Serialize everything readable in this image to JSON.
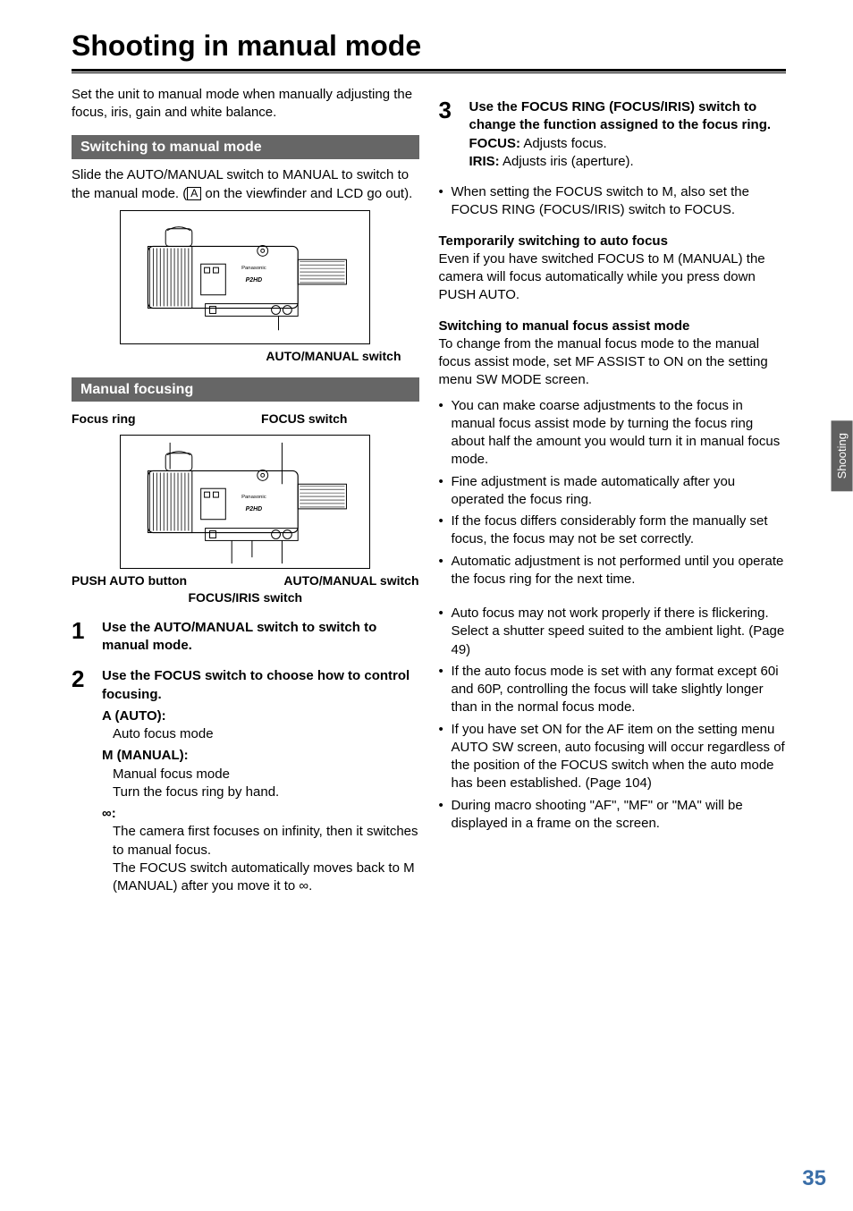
{
  "chapterTitle": "Shooting in manual mode",
  "intro": "Set the unit to manual mode when manually adjusting the focus, iris, gain and white balance.",
  "section1": {
    "heading": "Switching to manual mode",
    "body_pre": "Slide the AUTO/MANUAL switch to MANUAL to switch to the manual mode. (",
    "body_box": "A",
    "body_post": " on the viewfinder and LCD go out).",
    "figLabel": "AUTO/MANUAL switch"
  },
  "section2": {
    "heading": "Manual focusing",
    "labelFocusRing": "Focus ring",
    "labelFocusSwitch": "FOCUS switch",
    "labelPushAuto": "PUSH AUTO button",
    "labelAutoManual": "AUTO/MANUAL switch",
    "labelFocusIris": "FOCUS/IRIS switch"
  },
  "steps": [
    {
      "num": "1",
      "head": "Use the AUTO/MANUAL switch to switch to manual mode."
    },
    {
      "num": "2",
      "head": "Use the FOCUS switch to choose how to control focusing.",
      "sub": [
        {
          "dt": "A (AUTO):",
          "dd": "Auto focus mode"
        },
        {
          "dt": "M (MANUAL):",
          "dd": "Manual focus mode\nTurn the focus ring by hand."
        },
        {
          "dt": "∞:",
          "dd": "The camera first focuses on infinity, then it switches to manual focus.\nThe FOCUS switch automatically moves back to M (MANUAL) after you move it to ∞."
        }
      ]
    },
    {
      "num": "3",
      "head": "Use the FOCUS RING (FOCUS/IRIS) switch to change the function assigned to the focus ring.",
      "subinline": [
        {
          "bold": "FOCUS:",
          "text": " Adjusts focus."
        },
        {
          "bold": "IRIS:",
          "text": " Adjusts iris (aperture)."
        }
      ]
    }
  ],
  "rightBullets1": [
    "When setting the FOCUS switch to M, also set the FOCUS RING (FOCUS/IRIS) switch to FOCUS."
  ],
  "tempHeading": "Temporarily switching to auto focus",
  "tempBody": "Even if you have switched FOCUS to M (MANUAL) the camera will focus automatically while you press down PUSH AUTO.",
  "assistHeading": "Switching to manual focus assist mode",
  "assistBody": "To change from the manual focus mode to the manual focus assist mode, set MF ASSIST to ON on the setting menu SW MODE screen.",
  "assistBullets": [
    "You can make coarse adjustments to the focus in manual focus assist mode by turning the focus ring about half the amount you would turn it in manual focus mode.",
    "Fine adjustment is made automatically after you operated the focus ring.",
    "If the focus differs considerably form the manually set focus, the focus may not be set correctly.",
    "Automatic adjustment is not performed until you operate the focus ring for the next time."
  ],
  "notesBullets": [
    "Auto focus may not work properly if there is flickering.\nSelect a shutter speed suited to the ambient light. (Page 49)",
    "If the auto focus mode is set with any format except 60i and 60P, controlling the focus will take slightly longer than in the normal focus mode.",
    "If you have set ON for the AF item on the setting menu AUTO SW screen, auto focusing will occur regardless of the position of the FOCUS switch when the auto mode has been established. (Page 104)",
    "During macro shooting \"AF\", \"MF\" or \"MA\" will be displayed in a frame on the screen."
  ],
  "sideTab": "Shooting",
  "pageNumber": "35"
}
